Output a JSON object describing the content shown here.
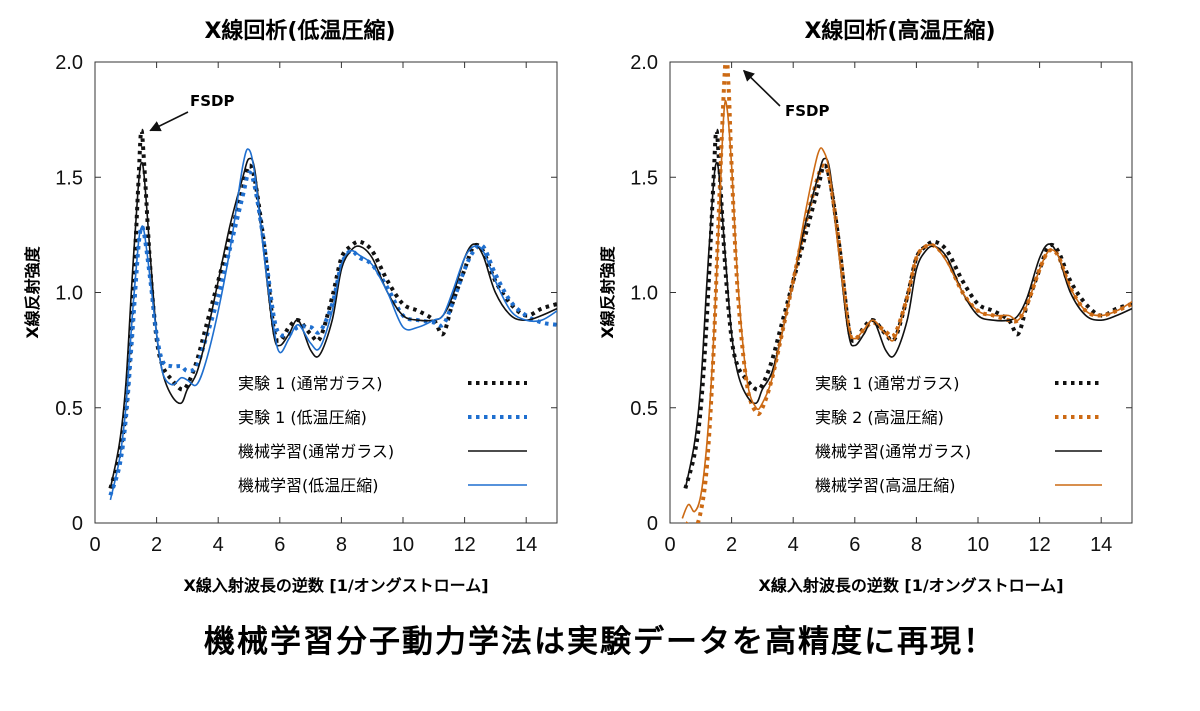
{
  "caption": "機械学習分子動力学法は実験データを高精度に再現！",
  "colors": {
    "black": "#111111",
    "blue": "#1f6fcf",
    "orange": "#cc6a14"
  },
  "chart_data": [
    {
      "type": "line",
      "title": "X線回析(低温圧縮)",
      "xlabel": "X線入射波長の逆数 [1/オングストローム]",
      "ylabel": "X線反射強度",
      "xlim": [
        0,
        15
      ],
      "ylim": [
        0,
        2.0
      ],
      "xticks": [
        "0",
        "2",
        "4",
        "6",
        "8",
        "10",
        "12",
        "14"
      ],
      "yticks": [
        "0",
        "0.5",
        "1.0",
        "1.5",
        "2.0"
      ],
      "annotation": {
        "text": "FSDP",
        "x": 1.6,
        "y": 1.72
      },
      "legend_position": "lower-right",
      "series": [
        {
          "name": "実験 1 (通常ガラス)",
          "style": "dotted",
          "color": "#111111",
          "x": [
            0.5,
            0.8,
            1.0,
            1.2,
            1.4,
            1.5,
            1.6,
            1.8,
            2.0,
            2.2,
            2.5,
            2.8,
            3.0,
            3.3,
            3.6,
            4.0,
            4.4,
            4.8,
            5.0,
            5.2,
            5.5,
            5.8,
            6.0,
            6.3,
            6.6,
            7.0,
            7.3,
            7.7,
            8.0,
            8.3,
            8.6,
            9.0,
            9.5,
            10.0,
            10.5,
            11.0,
            11.3,
            11.6,
            12.0,
            12.3,
            12.6,
            13.0,
            13.5,
            14.0,
            14.5,
            15.0
          ],
          "y": [
            0.15,
            0.3,
            0.5,
            0.9,
            1.45,
            1.7,
            1.55,
            1.1,
            0.8,
            0.68,
            0.62,
            0.58,
            0.6,
            0.7,
            0.85,
            1.05,
            1.25,
            1.45,
            1.55,
            1.48,
            1.2,
            0.85,
            0.79,
            0.85,
            0.88,
            0.82,
            0.8,
            0.98,
            1.15,
            1.2,
            1.22,
            1.18,
            1.05,
            0.95,
            0.92,
            0.88,
            0.82,
            0.95,
            1.1,
            1.2,
            1.18,
            1.05,
            0.95,
            0.9,
            0.93,
            0.95
          ]
        },
        {
          "name": "実験 1 (低温圧縮)",
          "style": "dotted",
          "color": "#1f6fcf",
          "x": [
            0.5,
            0.8,
            1.0,
            1.2,
            1.4,
            1.5,
            1.6,
            1.8,
            2.0,
            2.2,
            2.5,
            2.8,
            3.0,
            3.3,
            3.6,
            4.0,
            4.4,
            4.8,
            5.0,
            5.2,
            5.5,
            5.8,
            6.0,
            6.3,
            6.6,
            7.0,
            7.3,
            7.7,
            8.0,
            8.3,
            8.6,
            9.0,
            9.5,
            10.0,
            10.5,
            11.0,
            11.3,
            11.6,
            12.0,
            12.3,
            12.6,
            13.0,
            13.5,
            14.0,
            14.5,
            15.0
          ],
          "y": [
            0.12,
            0.25,
            0.45,
            0.8,
            1.18,
            1.28,
            1.25,
            1.05,
            0.82,
            0.7,
            0.68,
            0.68,
            0.66,
            0.68,
            0.8,
            0.98,
            1.2,
            1.42,
            1.52,
            1.45,
            1.2,
            0.9,
            0.82,
            0.82,
            0.85,
            0.85,
            0.83,
            0.95,
            1.12,
            1.18,
            1.15,
            1.12,
            1.02,
            0.9,
            0.88,
            0.87,
            0.86,
            0.95,
            1.1,
            1.18,
            1.2,
            1.08,
            0.96,
            0.9,
            0.87,
            0.86
          ]
        },
        {
          "name": "機械学習(通常ガラス)",
          "style": "solid",
          "color": "#111111",
          "x": [
            0.5,
            0.8,
            1.0,
            1.2,
            1.4,
            1.5,
            1.6,
            1.8,
            2.0,
            2.2,
            2.5,
            2.8,
            3.0,
            3.3,
            3.6,
            4.0,
            4.4,
            4.8,
            5.0,
            5.2,
            5.5,
            5.8,
            6.0,
            6.3,
            6.6,
            7.0,
            7.3,
            7.7,
            8.0,
            8.3,
            8.6,
            9.0,
            9.5,
            10.0,
            10.5,
            11.0,
            11.3,
            11.6,
            12.0,
            12.3,
            12.6,
            13.0,
            13.5,
            14.0,
            14.5,
            15.0
          ],
          "y": [
            0.15,
            0.35,
            0.6,
            1.05,
            1.45,
            1.56,
            1.5,
            1.15,
            0.82,
            0.65,
            0.55,
            0.52,
            0.58,
            0.65,
            0.8,
            1.05,
            1.3,
            1.5,
            1.58,
            1.52,
            1.15,
            0.82,
            0.77,
            0.82,
            0.88,
            0.75,
            0.73,
            0.88,
            1.1,
            1.18,
            1.2,
            1.15,
            1.0,
            0.9,
            0.88,
            0.88,
            0.9,
            0.98,
            1.15,
            1.21,
            1.16,
            1.0,
            0.9,
            0.88,
            0.9,
            0.93
          ]
        },
        {
          "name": "機械学習(低温圧縮)",
          "style": "solid",
          "color": "#1f6fcf",
          "x": [
            0.5,
            0.8,
            1.0,
            1.2,
            1.4,
            1.5,
            1.6,
            1.8,
            2.0,
            2.2,
            2.5,
            2.8,
            3.0,
            3.3,
            3.6,
            4.0,
            4.4,
            4.8,
            5.0,
            5.2,
            5.5,
            5.8,
            6.0,
            6.3,
            6.6,
            7.0,
            7.3,
            7.7,
            8.0,
            8.3,
            8.6,
            9.0,
            9.5,
            10.0,
            10.5,
            11.0,
            11.3,
            11.6,
            12.0,
            12.3,
            12.6,
            13.0,
            13.5,
            14.0,
            14.5,
            15.0
          ],
          "y": [
            0.1,
            0.28,
            0.5,
            0.88,
            1.2,
            1.28,
            1.26,
            1.05,
            0.82,
            0.65,
            0.6,
            0.63,
            0.62,
            0.6,
            0.7,
            0.92,
            1.2,
            1.55,
            1.62,
            1.5,
            1.15,
            0.85,
            0.74,
            0.8,
            0.86,
            0.78,
            0.76,
            0.92,
            1.12,
            1.18,
            1.16,
            1.12,
            1.0,
            0.85,
            0.85,
            0.88,
            0.9,
            1.0,
            1.15,
            1.2,
            1.18,
            1.05,
            0.92,
            0.88,
            0.88,
            0.92
          ]
        }
      ]
    },
    {
      "type": "line",
      "title": "X線回析(高温圧縮)",
      "xlabel": "X線入射波長の逆数 [1/オングストローム]",
      "ylabel": "X線反射強度",
      "xlim": [
        0,
        15
      ],
      "ylim": [
        0,
        2.0
      ],
      "xticks": [
        "0",
        "2",
        "4",
        "6",
        "8",
        "10",
        "12",
        "14"
      ],
      "yticks": [
        "0",
        "0.5",
        "1.0",
        "1.5",
        "2.0"
      ],
      "annotation": {
        "text": "FSDP",
        "x": 2.2,
        "y": 1.98
      },
      "legend_position": "lower-right",
      "series": [
        {
          "name": "実験 1 (通常ガラス)",
          "style": "dotted",
          "color": "#111111",
          "x": [
            0.5,
            0.8,
            1.0,
            1.2,
            1.4,
            1.5,
            1.6,
            1.8,
            2.0,
            2.2,
            2.5,
            2.8,
            3.0,
            3.3,
            3.6,
            4.0,
            4.4,
            4.8,
            5.0,
            5.2,
            5.5,
            5.8,
            6.0,
            6.3,
            6.6,
            7.0,
            7.3,
            7.7,
            8.0,
            8.3,
            8.6,
            9.0,
            9.5,
            10.0,
            10.5,
            11.0,
            11.3,
            11.6,
            12.0,
            12.3,
            12.6,
            13.0,
            13.5,
            14.0,
            14.5,
            15.0
          ],
          "y": [
            0.15,
            0.3,
            0.5,
            0.9,
            1.45,
            1.7,
            1.55,
            1.1,
            0.8,
            0.68,
            0.62,
            0.58,
            0.6,
            0.7,
            0.85,
            1.05,
            1.25,
            1.45,
            1.55,
            1.48,
            1.2,
            0.85,
            0.79,
            0.85,
            0.88,
            0.82,
            0.8,
            0.98,
            1.15,
            1.2,
            1.22,
            1.18,
            1.05,
            0.95,
            0.92,
            0.88,
            0.82,
            0.95,
            1.1,
            1.2,
            1.18,
            1.05,
            0.95,
            0.9,
            0.93,
            0.95
          ]
        },
        {
          "name": "実験 2 (高温圧縮)",
          "style": "dotted",
          "color": "#cc6a14",
          "x": [
            0.5,
            0.8,
            1.0,
            1.2,
            1.4,
            1.6,
            1.8,
            1.9,
            2.0,
            2.2,
            2.5,
            2.8,
            3.0,
            3.3,
            3.6,
            4.0,
            4.4,
            4.8,
            5.0,
            5.2,
            5.5,
            5.8,
            6.0,
            6.3,
            6.6,
            7.0,
            7.3,
            7.7,
            8.0,
            8.3,
            8.6,
            9.0,
            9.5,
            10.0,
            10.5,
            11.0,
            11.3,
            11.6,
            12.0,
            12.3,
            12.6,
            13.0,
            13.5,
            14.0,
            14.5,
            15.0
          ],
          "y": [
            0.0,
            -0.02,
            0.05,
            0.25,
            0.7,
            1.4,
            2.0,
            1.9,
            1.55,
            1.0,
            0.6,
            0.48,
            0.5,
            0.62,
            0.8,
            1.05,
            1.3,
            1.5,
            1.55,
            1.48,
            1.2,
            0.85,
            0.8,
            0.84,
            0.87,
            0.83,
            0.82,
            0.98,
            1.15,
            1.2,
            1.2,
            1.14,
            1.0,
            0.92,
            0.9,
            0.88,
            0.88,
            0.95,
            1.1,
            1.18,
            1.16,
            1.02,
            0.92,
            0.9,
            0.92,
            0.95
          ]
        },
        {
          "name": "機械学習(通常ガラス)",
          "style": "solid",
          "color": "#111111",
          "x": [
            0.5,
            0.8,
            1.0,
            1.2,
            1.4,
            1.5,
            1.6,
            1.8,
            2.0,
            2.2,
            2.5,
            2.8,
            3.0,
            3.3,
            3.6,
            4.0,
            4.4,
            4.8,
            5.0,
            5.2,
            5.5,
            5.8,
            6.0,
            6.3,
            6.6,
            7.0,
            7.3,
            7.7,
            8.0,
            8.3,
            8.6,
            9.0,
            9.5,
            10.0,
            10.5,
            11.0,
            11.3,
            11.6,
            12.0,
            12.3,
            12.6,
            13.0,
            13.5,
            14.0,
            14.5,
            15.0
          ],
          "y": [
            0.15,
            0.35,
            0.6,
            1.05,
            1.45,
            1.56,
            1.5,
            1.15,
            0.82,
            0.65,
            0.55,
            0.52,
            0.58,
            0.65,
            0.8,
            1.05,
            1.3,
            1.5,
            1.58,
            1.52,
            1.15,
            0.82,
            0.77,
            0.82,
            0.88,
            0.75,
            0.73,
            0.88,
            1.1,
            1.18,
            1.2,
            1.15,
            1.0,
            0.9,
            0.88,
            0.88,
            0.9,
            0.98,
            1.15,
            1.21,
            1.16,
            1.0,
            0.9,
            0.88,
            0.9,
            0.93
          ]
        },
        {
          "name": "機械学習(高温圧縮)",
          "style": "solid",
          "color": "#cc6a14",
          "x": [
            0.4,
            0.6,
            0.8,
            1.0,
            1.2,
            1.4,
            1.6,
            1.75,
            1.85,
            2.0,
            2.2,
            2.5,
            2.8,
            3.0,
            3.3,
            3.6,
            4.0,
            4.4,
            4.8,
            5.0,
            5.2,
            5.5,
            5.8,
            6.0,
            6.3,
            6.6,
            7.0,
            7.3,
            7.7,
            8.0,
            8.3,
            8.6,
            9.0,
            9.5,
            10.0,
            10.5,
            11.0,
            11.3,
            11.6,
            12.0,
            12.3,
            12.6,
            13.0,
            13.5,
            14.0,
            14.5,
            15.0
          ],
          "y": [
            0.02,
            0.08,
            0.05,
            0.12,
            0.35,
            0.75,
            1.35,
            1.78,
            1.8,
            1.55,
            1.05,
            0.62,
            0.5,
            0.52,
            0.62,
            0.8,
            1.05,
            1.35,
            1.6,
            1.61,
            1.5,
            1.15,
            0.85,
            0.8,
            0.84,
            0.88,
            0.82,
            0.8,
            0.98,
            1.15,
            1.2,
            1.2,
            1.13,
            1.0,
            0.92,
            0.9,
            0.9,
            0.88,
            0.95,
            1.1,
            1.18,
            1.16,
            1.02,
            0.92,
            0.9,
            0.92,
            0.96
          ]
        }
      ]
    }
  ]
}
